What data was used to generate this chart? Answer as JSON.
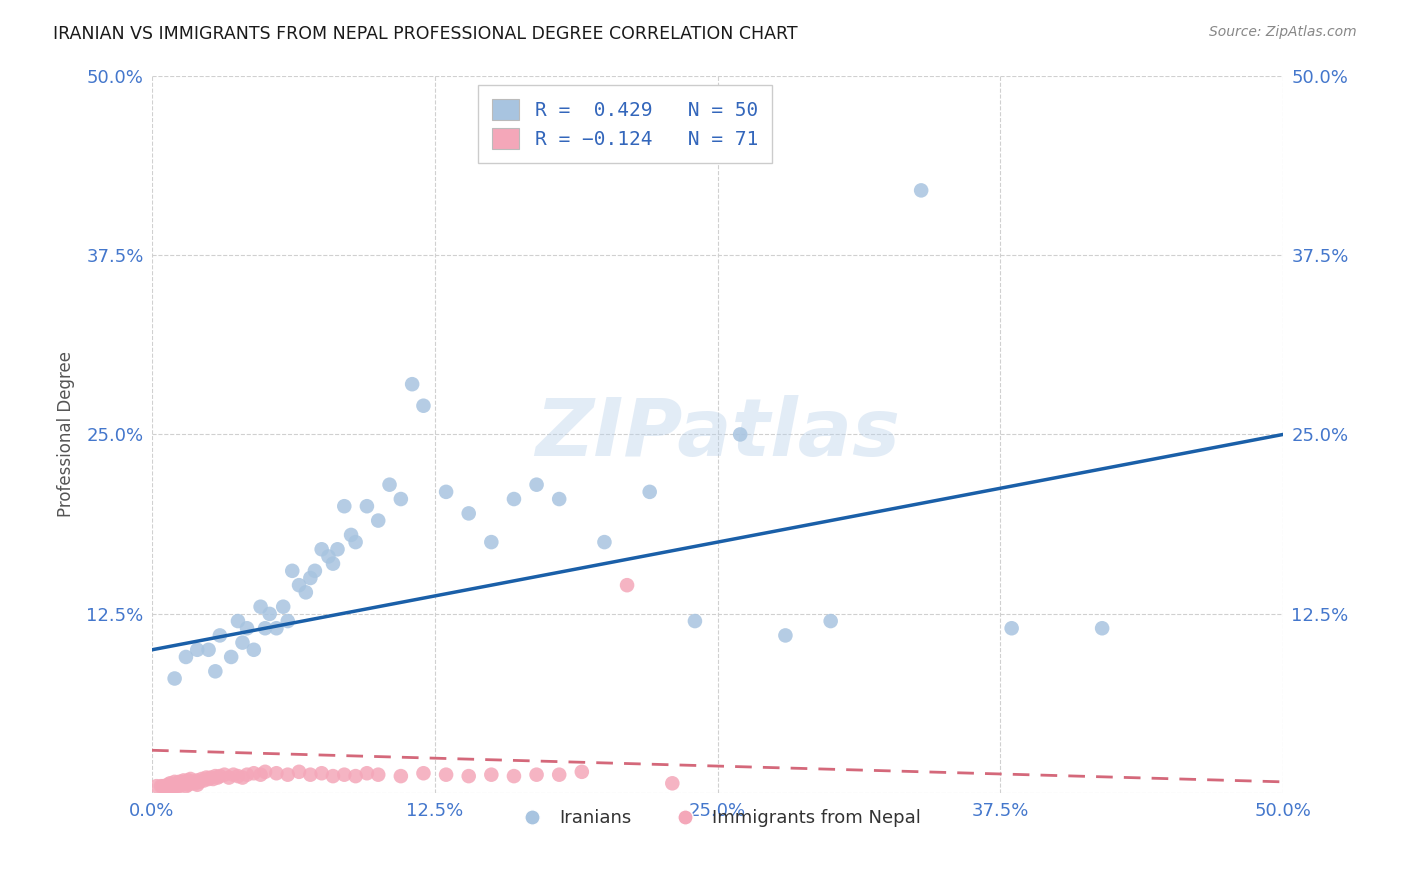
{
  "title": "IRANIAN VS IMMIGRANTS FROM NEPAL PROFESSIONAL DEGREE CORRELATION CHART",
  "source": "Source: ZipAtlas.com",
  "ylabel": "Professional Degree",
  "xlim": [
    0.0,
    0.5
  ],
  "ylim": [
    0.0,
    0.5
  ],
  "xtick_labels": [
    "0.0%",
    "",
    "12.5%",
    "",
    "25.0%",
    "",
    "37.5%",
    "",
    "50.0%"
  ],
  "ytick_labels": [
    "",
    "12.5%",
    "",
    "25.0%",
    "",
    "37.5%",
    "",
    "50.0%"
  ],
  "xtick_vals": [
    0.0,
    0.0625,
    0.125,
    0.1875,
    0.25,
    0.3125,
    0.375,
    0.4375,
    0.5
  ],
  "ytick_vals": [
    0.0,
    0.125,
    0.1875,
    0.25,
    0.3125,
    0.375,
    0.4375,
    0.5
  ],
  "blue_R": 0.429,
  "blue_N": 50,
  "pink_R": -0.124,
  "pink_N": 71,
  "blue_color": "#a8c4e0",
  "pink_color": "#f4a7b9",
  "blue_line_color": "#1a5fa8",
  "pink_line_color": "#d4687a",
  "legend_label_blue": "Iranians",
  "legend_label_pink": "Immigrants from Nepal",
  "watermark": "ZIPatlas",
  "background_color": "#ffffff",
  "grid_color": "#d0d0d0",
  "blue_x": [
    0.01,
    0.015,
    0.02,
    0.025,
    0.028,
    0.03,
    0.035,
    0.038,
    0.04,
    0.042,
    0.045,
    0.048,
    0.05,
    0.052,
    0.055,
    0.058,
    0.06,
    0.062,
    0.065,
    0.068,
    0.07,
    0.072,
    0.075,
    0.078,
    0.08,
    0.082,
    0.085,
    0.088,
    0.09,
    0.095,
    0.1,
    0.105,
    0.11,
    0.115,
    0.12,
    0.13,
    0.14,
    0.15,
    0.16,
    0.17,
    0.18,
    0.2,
    0.22,
    0.24,
    0.26,
    0.28,
    0.3,
    0.34,
    0.38,
    0.42
  ],
  "blue_y": [
    0.08,
    0.095,
    0.1,
    0.1,
    0.085,
    0.11,
    0.095,
    0.12,
    0.105,
    0.115,
    0.1,
    0.13,
    0.115,
    0.125,
    0.115,
    0.13,
    0.12,
    0.155,
    0.145,
    0.14,
    0.15,
    0.155,
    0.17,
    0.165,
    0.16,
    0.17,
    0.2,
    0.18,
    0.175,
    0.2,
    0.19,
    0.215,
    0.205,
    0.285,
    0.27,
    0.21,
    0.195,
    0.175,
    0.205,
    0.215,
    0.205,
    0.175,
    0.21,
    0.12,
    0.25,
    0.11,
    0.12,
    0.42,
    0.115,
    0.115
  ],
  "pink_x": [
    0.002,
    0.004,
    0.005,
    0.006,
    0.006,
    0.007,
    0.007,
    0.008,
    0.008,
    0.009,
    0.009,
    0.01,
    0.01,
    0.011,
    0.011,
    0.012,
    0.012,
    0.013,
    0.013,
    0.014,
    0.014,
    0.015,
    0.015,
    0.016,
    0.016,
    0.017,
    0.017,
    0.018,
    0.019,
    0.02,
    0.02,
    0.021,
    0.022,
    0.023,
    0.024,
    0.025,
    0.026,
    0.027,
    0.028,
    0.029,
    0.03,
    0.032,
    0.034,
    0.036,
    0.038,
    0.04,
    0.042,
    0.045,
    0.048,
    0.05,
    0.055,
    0.06,
    0.065,
    0.07,
    0.075,
    0.08,
    0.085,
    0.09,
    0.095,
    0.1,
    0.11,
    0.12,
    0.13,
    0.14,
    0.15,
    0.16,
    0.17,
    0.18,
    0.19,
    0.21,
    0.23
  ],
  "pink_y": [
    0.005,
    0.005,
    0.005,
    0.005,
    0.003,
    0.004,
    0.006,
    0.005,
    0.007,
    0.004,
    0.006,
    0.005,
    0.008,
    0.005,
    0.007,
    0.005,
    0.008,
    0.006,
    0.008,
    0.007,
    0.009,
    0.005,
    0.008,
    0.006,
    0.009,
    0.007,
    0.01,
    0.008,
    0.007,
    0.006,
    0.009,
    0.008,
    0.01,
    0.009,
    0.011,
    0.01,
    0.011,
    0.01,
    0.012,
    0.011,
    0.012,
    0.013,
    0.011,
    0.013,
    0.012,
    0.011,
    0.013,
    0.014,
    0.013,
    0.015,
    0.014,
    0.013,
    0.015,
    0.013,
    0.014,
    0.012,
    0.013,
    0.012,
    0.014,
    0.013,
    0.012,
    0.014,
    0.013,
    0.012,
    0.013,
    0.012,
    0.013,
    0.013,
    0.015,
    0.145,
    0.007
  ]
}
